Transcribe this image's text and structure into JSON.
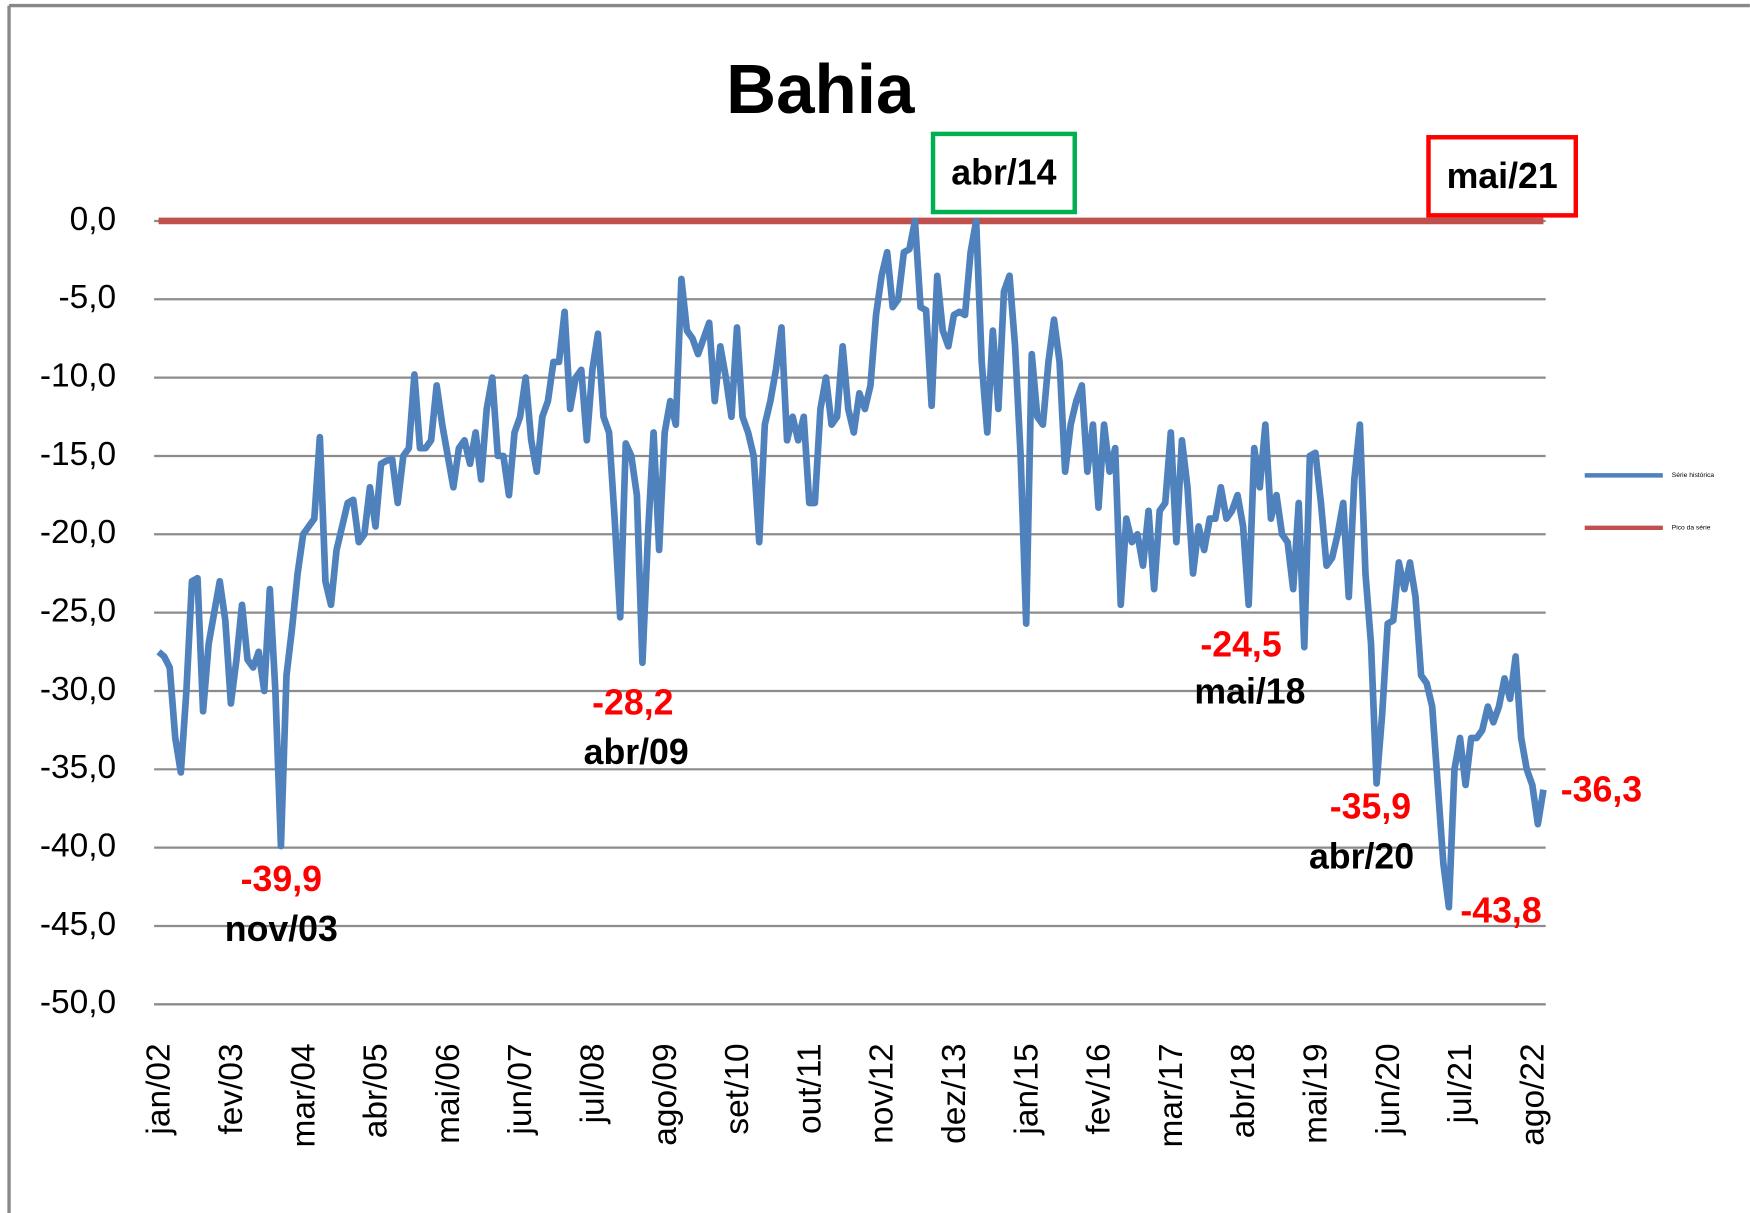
{
  "chart_data": {
    "type": "line",
    "title": "Bahia",
    "categories": [
      "jan/02",
      null,
      null,
      null,
      null,
      null,
      null,
      null,
      null,
      null,
      null,
      null,
      null,
      "fev/03",
      null,
      null,
      null,
      null,
      null,
      null,
      null,
      null,
      null,
      null,
      null,
      null,
      "mar/04",
      null,
      null,
      null,
      null,
      null,
      null,
      null,
      null,
      null,
      null,
      null,
      null,
      "abr/05",
      null,
      null,
      null,
      null,
      null,
      null,
      null,
      null,
      null,
      null,
      null,
      null,
      "mai/06",
      null,
      null,
      null,
      null,
      null,
      null,
      null,
      null,
      null,
      null,
      null,
      null,
      "jun/07",
      null,
      null,
      null,
      null,
      null,
      null,
      null,
      null,
      null,
      null,
      null,
      null,
      "jul/08",
      null,
      null,
      null,
      null,
      null,
      null,
      null,
      null,
      null,
      null,
      null,
      null,
      "ago/09",
      null,
      null,
      null,
      null,
      null,
      null,
      null,
      null,
      null,
      null,
      null,
      null,
      "set/10",
      null,
      null,
      null,
      null,
      null,
      null,
      null,
      null,
      null,
      null,
      null,
      null,
      "out/11",
      null,
      null,
      null,
      null,
      null,
      null,
      null,
      null,
      null,
      null,
      null,
      null,
      "nov/12",
      null,
      null,
      null,
      null,
      null,
      null,
      null,
      null,
      null,
      null,
      null,
      null,
      "dez/13",
      null,
      null,
      null,
      null,
      null,
      null,
      null,
      null,
      null,
      null,
      null,
      null,
      "jan/15",
      null,
      null,
      null,
      null,
      null,
      null,
      null,
      null,
      null,
      null,
      null,
      null,
      "fev/16",
      null,
      null,
      null,
      null,
      null,
      null,
      null,
      null,
      null,
      null,
      null,
      null,
      "mar/17",
      null,
      null,
      null,
      null,
      null,
      null,
      null,
      null,
      null,
      null,
      null,
      null,
      "abr/18",
      null,
      null,
      null,
      null,
      null,
      null,
      null,
      null,
      null,
      null,
      null,
      null,
      "mai/19",
      null,
      null,
      null,
      null,
      null,
      null,
      null,
      null,
      null,
      null,
      null,
      null,
      "jun/20",
      null,
      null,
      null,
      null,
      null,
      null,
      null,
      null,
      null,
      null,
      null,
      null,
      "jul/21",
      null,
      null,
      null,
      null,
      null,
      null,
      null,
      null,
      null,
      null,
      null,
      null,
      "ago/22",
      null,
      null
    ],
    "series": [
      {
        "name": "Série histórica",
        "color": "#4f81bd",
        "values": [
          -27.5,
          -27.8,
          -28.5,
          -33,
          -35.2,
          -30,
          -23,
          -22.8,
          -31.3,
          -27,
          -25,
          -23,
          -25.5,
          -30.8,
          -28,
          -24.5,
          -28,
          -28.5,
          -27.5,
          -30,
          -23.5,
          -30,
          -39.9,
          -29,
          -26,
          -22.5,
          -20,
          -19.5,
          -19,
          -13.8,
          -23,
          -24.5,
          -21,
          -19.5,
          -18,
          -17.8,
          -20.5,
          -20,
          -17,
          -19.5,
          -15.5,
          -15.3,
          -15.2,
          -18,
          -15,
          -14.5,
          -9.8,
          -14.5,
          -14.5,
          -14,
          -10.5,
          -13,
          -15,
          -17,
          -14.5,
          -14,
          -15.5,
          -13.5,
          -16.5,
          -12,
          -10,
          -15,
          -15,
          -17.5,
          -13.5,
          -12.5,
          -10,
          -14,
          -16,
          -12.5,
          -11.5,
          -9,
          -9,
          -5.8,
          -12,
          -10,
          -9.5,
          -14,
          -9.5,
          -7.2,
          -12.5,
          -13.5,
          -19,
          -25.3,
          -14.2,
          -15,
          -17.5,
          -28.2,
          -20,
          -13.5,
          -21,
          -13.5,
          -11.5,
          -13,
          -3.7,
          -7,
          -7.5,
          -8.5,
          -7.5,
          -6.5,
          -11.5,
          -8,
          -10,
          -12.5,
          -6.8,
          -12.5,
          -13.5,
          -15,
          -20.5,
          -13,
          -11.5,
          -9.5,
          -6.8,
          -14,
          -12.5,
          -14,
          -12.5,
          -18,
          -18,
          -12,
          -10,
          -13,
          -12.5,
          -8,
          -12,
          -13.5,
          -11,
          -12,
          -10.5,
          -6,
          -3.5,
          -2,
          -5.5,
          -5,
          -2,
          -1.8,
          0,
          -5.5,
          -5.7,
          -11.8,
          -3.5,
          -7,
          -8,
          -6,
          -5.8,
          -6,
          -2,
          0,
          -9,
          -13.5,
          -7,
          -12,
          -4.5,
          -3.5,
          -8,
          -15,
          -25.7,
          -8.5,
          -12.5,
          -13,
          -9,
          -6.3,
          -9,
          -16,
          -13,
          -11.5,
          -10.5,
          -16,
          -13,
          -18.3,
          -13,
          -16,
          -14.5,
          -24.5,
          -19,
          -20.5,
          -20,
          -22,
          -18.5,
          -23.5,
          -18.5,
          -18,
          -13.5,
          -20.5,
          -14,
          -17,
          -22.5,
          -19.5,
          -21,
          -19,
          -19,
          -17,
          -19,
          -18.5,
          -17.5,
          -19.5,
          -24.5,
          -14.5,
          -17,
          -13,
          -19,
          -17.5,
          -20,
          -20.5,
          -23.5,
          -18,
          -27.2,
          -15,
          -14.8,
          -18,
          -22,
          -21.5,
          -20,
          -18,
          -24,
          -16.5,
          -13,
          -22.5,
          -27,
          -35.9,
          -31.5,
          -25.7,
          -25.5,
          -21.8,
          -23.5,
          -21.8,
          -24,
          -29,
          -29.5,
          -31,
          -36,
          -41,
          -43.8,
          -35,
          -33,
          -36,
          -33,
          -33,
          -32.5,
          -31,
          -32,
          -31,
          -29.2,
          -30.5,
          -27.8,
          -33,
          -35,
          -36,
          -38.5,
          -36.3
        ]
      }
    ],
    "reference_line": {
      "name": "Pico da série",
      "color": "#c0504d",
      "value": 0
    },
    "ylim": [
      -50,
      0
    ],
    "yticks": [
      {
        "value": 0,
        "label": "0,0"
      },
      {
        "value": -5,
        "label": "-5,0"
      },
      {
        "value": -10,
        "label": "-10,0"
      },
      {
        "value": -15,
        "label": "-15,0"
      },
      {
        "value": -20,
        "label": "-20,0"
      },
      {
        "value": -25,
        "label": "-25,0"
      },
      {
        "value": -30,
        "label": "-30,0"
      },
      {
        "value": -35,
        "label": "-35,0"
      },
      {
        "value": -40,
        "label": "-40,0"
      },
      {
        "value": -45,
        "label": "-45,0"
      },
      {
        "value": -50,
        "label": "-50,0"
      }
    ],
    "grid": true,
    "legend": "right",
    "annotations": [
      {
        "value_label": "-39,9",
        "label": "nov/03"
      },
      {
        "value_label": "-28,2",
        "label": "abr/09"
      },
      {
        "value_label": "-24,5",
        "label": "mai/18"
      },
      {
        "value_label": "-35,9",
        "label": "abr/20"
      },
      {
        "value_label": "-43,8"
      },
      {
        "value_label": "-36,3"
      }
    ],
    "peak_boxes": [
      {
        "label": "abr/14",
        "color": "#00b050"
      },
      {
        "label": "mai/21",
        "color": "#ff0000"
      }
    ]
  }
}
